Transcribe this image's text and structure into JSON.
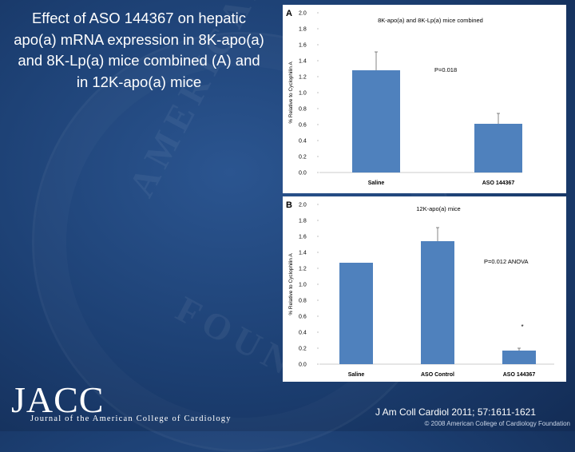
{
  "slide_title": "Effect of ASO 144367 on hepatic apo(a) mRNA expression in 8K-apo(a) and 8K-Lp(a) mice combined (A) and in 12K-apo(a) mice",
  "seal_text": [
    "AMERICAN",
    "FOUN"
  ],
  "logo_text": "JACC",
  "journal_name": "Journal of the American College of Cardiology",
  "citation": "J Am Coll Cardiol 2011; 57:1611-1621",
  "copyright": "© 2008 American College of Cardiology Foundation",
  "colors": {
    "bar": "#4f81bd",
    "panel_bg": "#ffffff"
  },
  "chart_data": [
    {
      "type": "bar",
      "panel_label": "A",
      "title": "8K-apo(a) and 8K-Lp(a) mice combined",
      "ylabel": "% Relative to Cyclophilin A",
      "ylim": [
        0,
        2.0
      ],
      "yticks": [
        "2.0",
        "1.8",
        "1.6",
        "1.4",
        "1.2",
        "1.0",
        "0.8",
        "0.6",
        "0.4",
        "0.2",
        "0.0"
      ],
      "categories": [
        "Saline",
        "ASO 144367"
      ],
      "values": [
        1.28,
        0.61
      ],
      "errors": [
        0.23,
        0.13
      ],
      "annotation": "P=0.018",
      "star": ""
    },
    {
      "type": "bar",
      "panel_label": "B",
      "title": "12K-apo(a) mice",
      "ylabel": "% Relative to Cyclophilin A",
      "ylim": [
        0,
        2.0
      ],
      "yticks": [
        "2.0",
        "1.8",
        "1.6",
        "1.4",
        "1.2",
        "1.0",
        "0.8",
        "0.6",
        "0.4",
        "0.2",
        "0.0"
      ],
      "categories": [
        "Saline",
        "ASO Control",
        "ASO 144367"
      ],
      "values": [
        1.27,
        1.54,
        0.17
      ],
      "errors": [
        0.0,
        0.17,
        0.03
      ],
      "annotation": "P=0.012 ANOVA",
      "star": "*"
    }
  ]
}
